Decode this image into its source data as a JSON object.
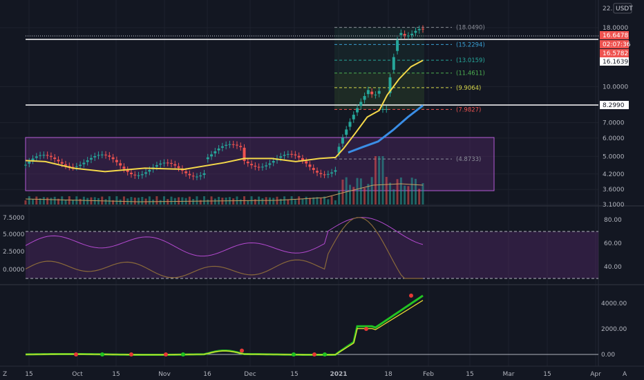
{
  "header": {
    "currency_label": "USDT",
    "top_clipped_tick": "22."
  },
  "colors": {
    "bg": "#131722",
    "grid": "#1e222d",
    "up": "#26a69a",
    "down": "#ef5350",
    "ma_fast": "#f5d94a",
    "ma_slow": "#3a8ee6",
    "box_fill": "#5b2a72",
    "box_stroke": "#b45bd6",
    "rsi_main": "#b44ad0",
    "rsi_signal": "#8a6a3a",
    "osc_green": "#22c322",
    "osc_yellow": "#e8d832",
    "osc_red": "#e53935"
  },
  "price_labels": {
    "last": "16.6478",
    "countdown": "02:07:36",
    "high_line": "16.5782",
    "low_line": "16.1639",
    "level": "8.2990"
  },
  "chart_data": [
    {
      "type": "line",
      "name": "price",
      "scale": "log",
      "yticks": [
        "18.0000",
        "10.0000",
        "7.0000",
        "6.0000",
        "5.0000",
        "4.2000",
        "3.6000",
        "3.1000"
      ],
      "ytick_values": [
        18,
        10,
        7,
        6,
        5,
        4.2,
        3.6,
        3.1
      ],
      "xticks": [
        "15",
        "Oct",
        "15",
        "Nov",
        "16",
        "Dec",
        "15",
        "2021",
        "18",
        "Feb",
        "15",
        "Mar",
        "15",
        "Apr"
      ],
      "fib_levels": [
        {
          "label": "(18.0490)",
          "value": 18.049,
          "color": "#8c8f99"
        },
        {
          "label": "(15.2294)",
          "value": 15.2294,
          "color": "#3aa1d6"
        },
        {
          "label": "(13.0159)",
          "value": 13.0159,
          "color": "#26a69a"
        },
        {
          "label": "(11.4611)",
          "value": 11.4611,
          "color": "#4caf50"
        },
        {
          "label": "(9.9064)",
          "value": 9.9064,
          "color": "#d7d74a"
        },
        {
          "label": "(7.9827)",
          "value": 7.9827,
          "color": "#ef5350"
        },
        {
          "label": "(4.8733)",
          "value": 4.8733,
          "color": "#8c8f99"
        }
      ],
      "ma_fast": [
        [
          0,
          4.8
        ],
        [
          0.05,
          4.75
        ],
        [
          0.12,
          4.45
        ],
        [
          0.2,
          4.3
        ],
        [
          0.3,
          4.45
        ],
        [
          0.4,
          4.4
        ],
        [
          0.5,
          4.7
        ],
        [
          0.55,
          4.9
        ],
        [
          0.62,
          4.9
        ],
        [
          0.68,
          4.75
        ],
        [
          0.74,
          4.9
        ],
        [
          0.78,
          4.95
        ],
        [
          0.8,
          5.4
        ],
        [
          0.83,
          6.3
        ],
        [
          0.86,
          7.4
        ],
        [
          0.89,
          7.9
        ],
        [
          0.91,
          9.2
        ],
        [
          0.94,
          10.8
        ],
        [
          0.97,
          12.2
        ],
        [
          1.0,
          13.0
        ]
      ],
      "ma_slow": [
        [
          0,
          5.2
        ],
        [
          0.2,
          5.5
        ],
        [
          0.4,
          5.8
        ],
        [
          0.6,
          6.5
        ],
        [
          0.8,
          7.4
        ],
        [
          1.0,
          8.3
        ]
      ]
    },
    {
      "type": "line",
      "name": "rsi",
      "yticks_left": [
        "7.5000",
        "5.0000",
        "2.5000",
        "0.0000"
      ],
      "yticks_right": [
        "80.00",
        "60.00",
        "40.00"
      ],
      "ytick_values_right": [
        80,
        60,
        40
      ],
      "bands": [
        70,
        30
      ]
    },
    {
      "type": "line",
      "name": "oscillator",
      "yticks": [
        "4000.00",
        "2000.00",
        "0.00"
      ],
      "ytick_values": [
        4000,
        2000,
        0
      ]
    }
  ]
}
